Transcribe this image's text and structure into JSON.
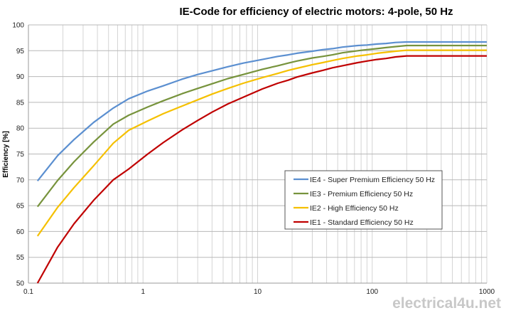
{
  "chart_data": {
    "type": "line",
    "title": "IE-Code for efficiency of electric motors: 4-pole, 50 Hz",
    "xlabel": "",
    "ylabel": "Efficiency  [%]",
    "xscale": "log",
    "xlim": [
      0.1,
      1000
    ],
    "ylim": [
      50,
      100
    ],
    "xticks": [
      "0.1",
      "1",
      "10",
      "100",
      "1000"
    ],
    "yticks": [
      "50",
      "55",
      "60",
      "65",
      "70",
      "75",
      "80",
      "85",
      "90",
      "95",
      "100"
    ],
    "grid": true,
    "legend_position": "center-right",
    "x": [
      0.12,
      0.18,
      0.25,
      0.37,
      0.55,
      0.75,
      1.1,
      1.5,
      2.2,
      3,
      4,
      5.5,
      7.5,
      11,
      15,
      18.5,
      22,
      30,
      37,
      45,
      55,
      75,
      90,
      110,
      132,
      160,
      200,
      1000
    ],
    "series": [
      {
        "name": "IE4 - Super Premium Efficiency 50 Hz",
        "color": "#5b8fd0",
        "values": [
          69.8,
          74.7,
          77.8,
          81.1,
          83.9,
          85.7,
          87.2,
          88.2,
          89.5,
          90.4,
          91.1,
          91.9,
          92.6,
          93.3,
          93.9,
          94.2,
          94.5,
          94.9,
          95.2,
          95.4,
          95.7,
          96.0,
          96.1,
          96.3,
          96.4,
          96.6,
          96.7,
          96.7
        ]
      },
      {
        "name": "IE3 - Premium Efficiency 50 Hz",
        "color": "#77933c",
        "values": [
          64.8,
          69.9,
          73.5,
          77.3,
          80.8,
          82.5,
          84.1,
          85.3,
          86.7,
          87.7,
          88.6,
          89.6,
          90.4,
          91.4,
          92.1,
          92.6,
          93.0,
          93.6,
          93.9,
          94.2,
          94.6,
          95.0,
          95.2,
          95.4,
          95.6,
          95.8,
          96.0,
          96.0
        ]
      },
      {
        "name": "IE2 - High Efficiency 50 Hz",
        "color": "#f5c000",
        "values": [
          59.1,
          64.7,
          68.5,
          72.7,
          77.1,
          79.6,
          81.4,
          82.8,
          84.3,
          85.5,
          86.6,
          87.7,
          88.7,
          89.8,
          90.6,
          91.2,
          91.6,
          92.3,
          92.7,
          93.1,
          93.5,
          94.0,
          94.2,
          94.5,
          94.7,
          94.9,
          95.1,
          95.1
        ]
      },
      {
        "name": "IE1 - Standard Efficiency 50 Hz",
        "color": "#c00000",
        "values": [
          50.0,
          57.0,
          61.5,
          66.0,
          70.0,
          72.1,
          75.0,
          77.2,
          79.7,
          81.5,
          83.1,
          84.7,
          86.0,
          87.6,
          88.7,
          89.3,
          89.9,
          90.7,
          91.2,
          91.7,
          92.1,
          92.7,
          93.0,
          93.3,
          93.5,
          93.8,
          94.0,
          94.0
        ]
      }
    ]
  },
  "watermark": "electrical4u.net"
}
